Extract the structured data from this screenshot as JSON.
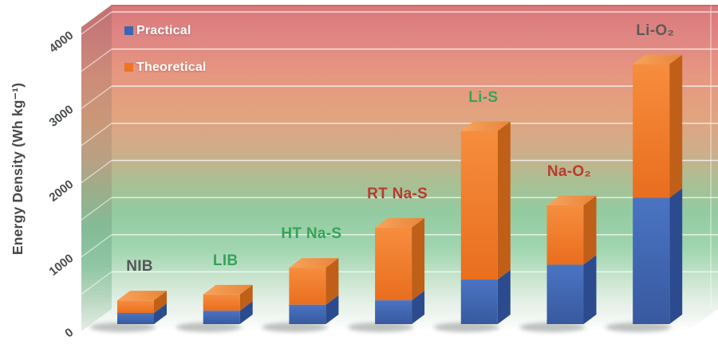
{
  "chart_data": {
    "type": "bar",
    "projection": "3d-stacked-overlay",
    "title": "",
    "ylabel": "Energy Density (Wh kg⁻¹)",
    "ylim": [
      0,
      4000
    ],
    "yticks": [
      0,
      1000,
      2000,
      3000,
      4000
    ],
    "gridline_step": 500,
    "grid": "on",
    "legend_position": "top-left",
    "categories": [
      "NIB",
      "LIB",
      "HT Na-S",
      "RT Na-S",
      "Li-S",
      "Na-O₂",
      "Li-O₂"
    ],
    "category_label_colors": [
      "#54585a",
      "#35a457",
      "#35a457",
      "#bb3a2c",
      "#35a457",
      "#bb3a2c",
      "#5d5a58"
    ],
    "series": [
      {
        "name": "Practical",
        "color": "#3d65b2",
        "values": [
          150,
          180,
          260,
          320,
          600,
          800,
          1700
        ]
      },
      {
        "name": "Theoretical",
        "color": "#ee7425",
        "values": [
          320,
          400,
          760,
          1300,
          2600,
          1600,
          3500
        ]
      }
    ],
    "colors": {
      "practical_front": "#3d65b2",
      "practical_side": "#2c4b8e",
      "theoretical_front": "#ee7425",
      "theoretical_side": "#c05f18",
      "theoretical_top": "#ef9449",
      "wall_top": "#d97878",
      "wall_mid": "#e2a37f",
      "wall_green": "#93cba1",
      "wall_bottom": "#ecf3ed",
      "gridline": "#ffffff"
    }
  }
}
